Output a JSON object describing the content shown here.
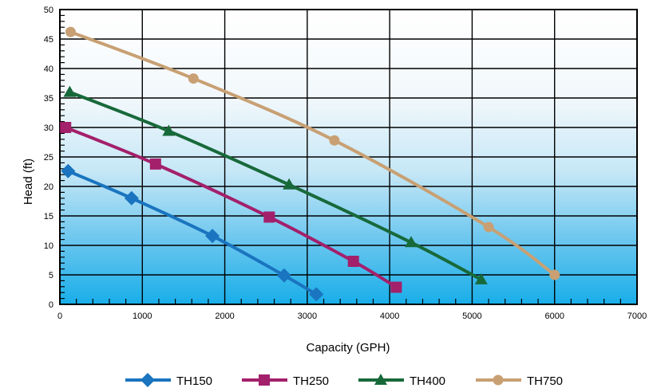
{
  "chart_data": {
    "type": "line",
    "xlabel": "Capacity (GPH)",
    "ylabel": "Head (ft)",
    "xlim": [
      0,
      7000
    ],
    "ylim": [
      0,
      50
    ],
    "x_ticks": [
      "0",
      "1000",
      "2000",
      "3000",
      "4000",
      "5000",
      "6000",
      "7000"
    ],
    "y_ticks": [
      "0",
      "5",
      "10",
      "15",
      "20",
      "25",
      "30",
      "35",
      "40",
      "45",
      "50"
    ],
    "grid": true,
    "legend_position": "bottom",
    "series": [
      {
        "name": "TH150",
        "color": "#1a74bf",
        "marker": "diamond",
        "x": [
          100,
          870,
          1850,
          2720,
          3110
        ],
        "y": [
          22.6,
          18.0,
          11.6,
          4.9,
          1.7
        ]
      },
      {
        "name": "TH250",
        "color": "#a3206b",
        "marker": "square",
        "x": [
          70,
          1160,
          2540,
          3560,
          4080
        ],
        "y": [
          30.0,
          23.8,
          14.8,
          7.3,
          2.9
        ]
      },
      {
        "name": "TH400",
        "color": "#18693a",
        "marker": "triangle",
        "x": [
          120,
          1320,
          2780,
          4260,
          5110
        ],
        "y": [
          36.0,
          29.4,
          20.3,
          10.5,
          4.2
        ]
      },
      {
        "name": "TH750",
        "color": "#c8a073",
        "marker": "circle",
        "x": [
          130,
          1620,
          3330,
          5200,
          6000
        ],
        "y": [
          46.2,
          38.3,
          27.8,
          13.1,
          5.0
        ]
      }
    ]
  }
}
